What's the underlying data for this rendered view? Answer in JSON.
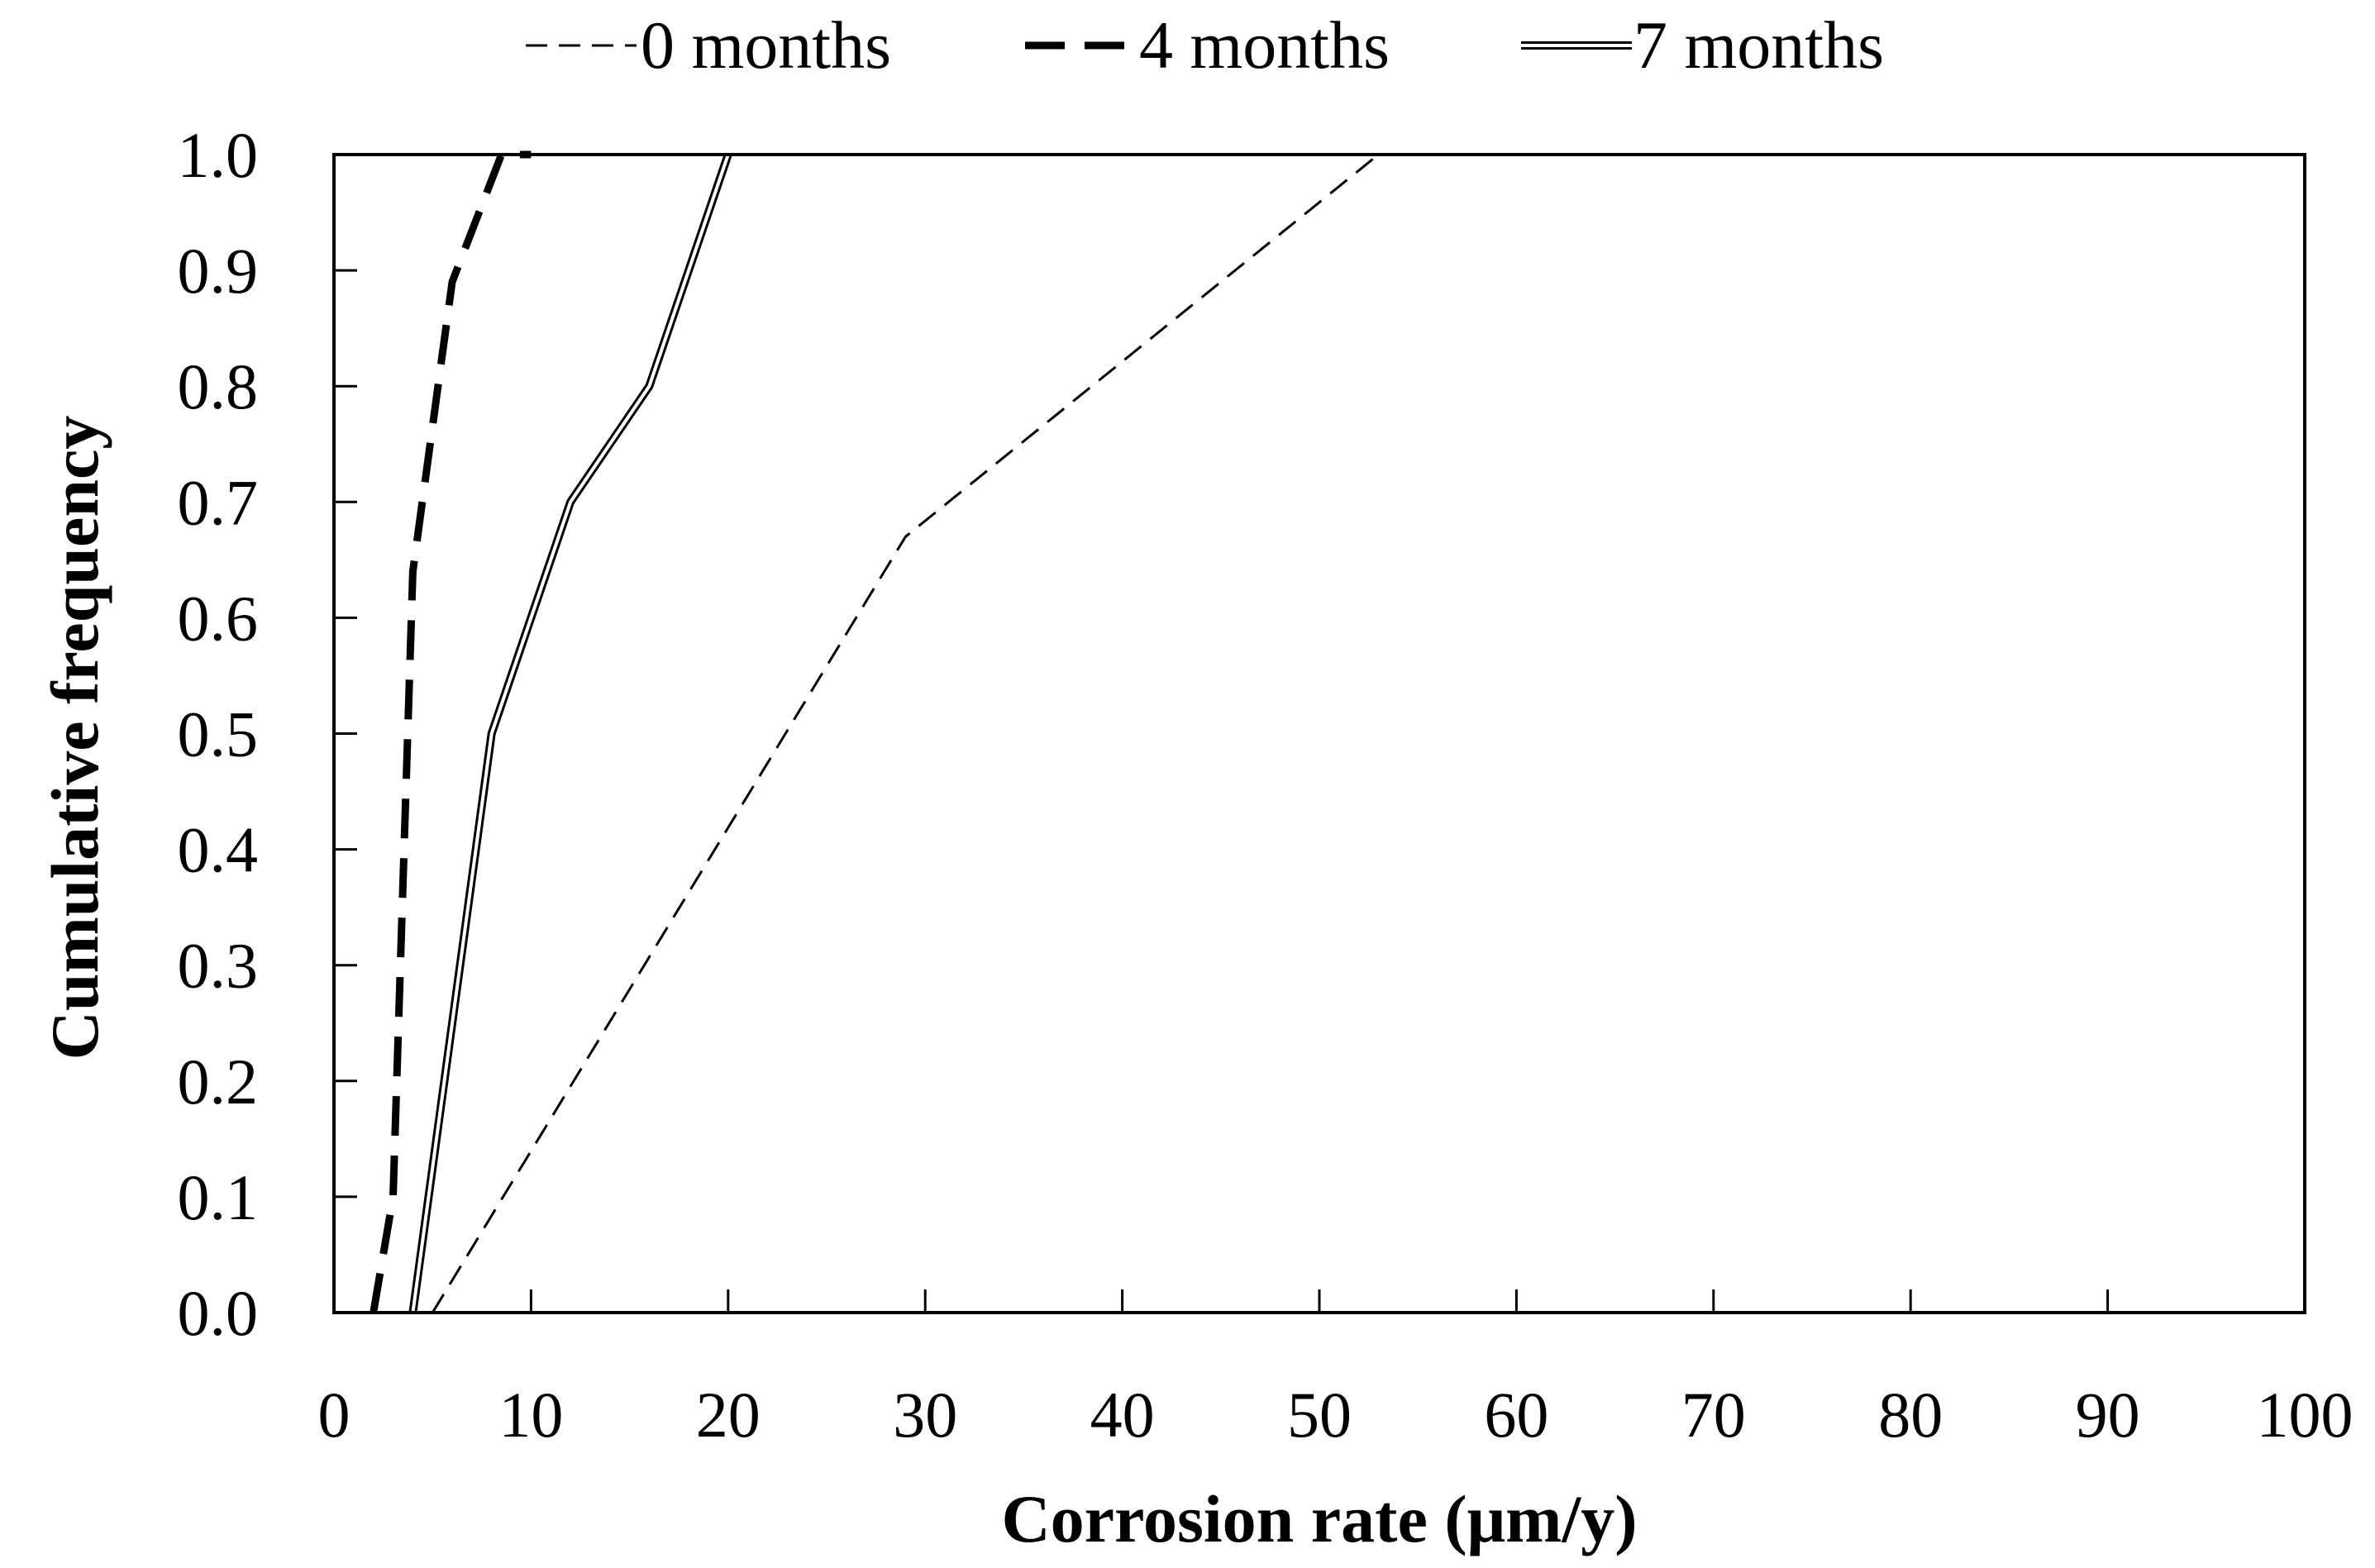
{
  "chart_data": {
    "type": "line",
    "title": "",
    "xlabel": "Corrosion rate (μm/y)",
    "ylabel": "Cumulative frequency",
    "xlim": [
      0,
      100
    ],
    "ylim": [
      0,
      1
    ],
    "xticks": [
      0,
      10,
      20,
      30,
      40,
      50,
      60,
      70,
      80,
      90,
      100
    ],
    "yticks": [
      "0.0",
      "0.1",
      "0.2",
      "0.3",
      "0.4",
      "0.5",
      "0.6",
      "0.7",
      "0.8",
      "0.9",
      "1.0"
    ],
    "grid": false,
    "legend_position": "top",
    "series": [
      {
        "name": "0 months",
        "style": "thin-dashed",
        "color": "#000000",
        "x": [
          5,
          29,
          53
        ],
        "y": [
          0.0,
          0.67,
          1.0
        ]
      },
      {
        "name": "4 months",
        "style": "thick-dashed",
        "color": "#000000",
        "x": [
          2,
          3,
          4,
          6,
          8.5,
          10
        ],
        "y": [
          0.0,
          0.1,
          0.64,
          0.89,
          1.0,
          1.0
        ]
      },
      {
        "name": "7 months",
        "style": "double-line",
        "color": "#000000",
        "x": [
          4,
          8,
          12,
          16,
          20
        ],
        "y": [
          0.0,
          0.5,
          0.7,
          0.8,
          1.0
        ]
      }
    ]
  }
}
